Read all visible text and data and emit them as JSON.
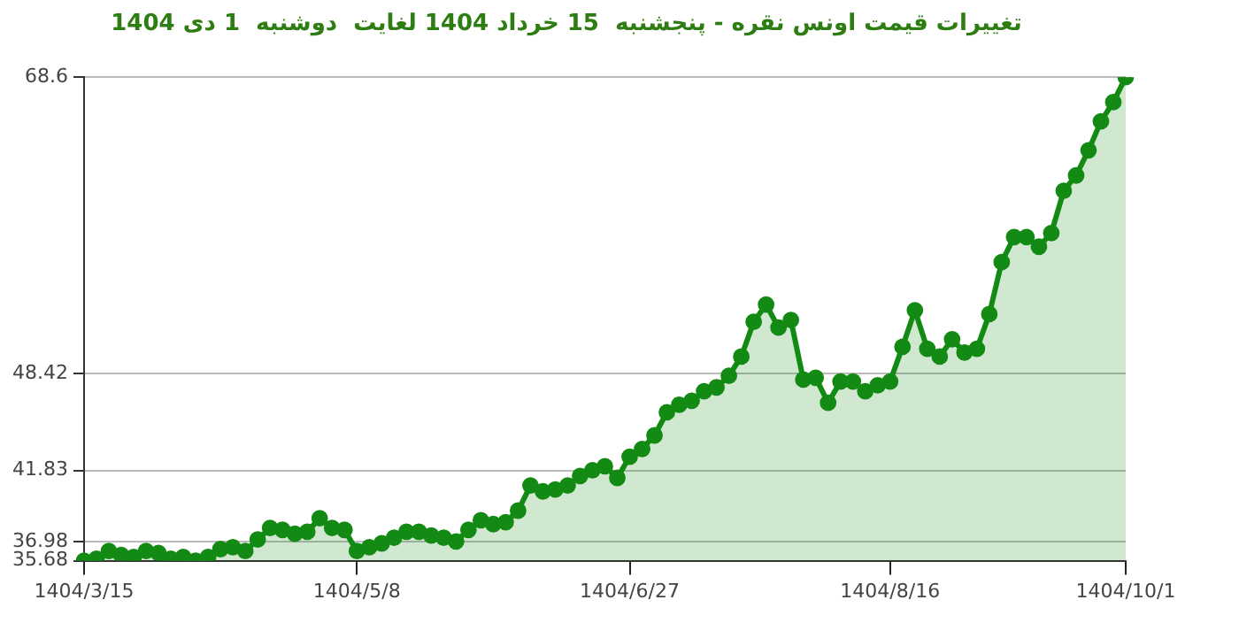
{
  "chart_data": {
    "type": "area",
    "title": "تغییرات قیمت اونس نقره - پنجشنبه  15 خرداد 1404 لغایت  دوشنبه  1 دی 1404",
    "categories": [
      "1404/3/15",
      null,
      null,
      null,
      null,
      null,
      null,
      null,
      null,
      null,
      null,
      null,
      null,
      null,
      null,
      null,
      null,
      null,
      null,
      null,
      null,
      null,
      "1404/5/8",
      null,
      null,
      null,
      null,
      null,
      null,
      null,
      null,
      null,
      null,
      null,
      null,
      null,
      null,
      null,
      null,
      null,
      null,
      null,
      null,
      null,
      "1404/6/27",
      null,
      null,
      null,
      null,
      null,
      null,
      null,
      null,
      null,
      null,
      null,
      null,
      null,
      null,
      null,
      null,
      null,
      null,
      null,
      null,
      "1404/8/16",
      null,
      null,
      null,
      null,
      null,
      null,
      null,
      null,
      null,
      null,
      null,
      null,
      null,
      null,
      null,
      null,
      null,
      null,
      "1404/10/1"
    ],
    "series": [
      {
        "color": "#138a13",
        "values": [
          35.68,
          35.81,
          36.34,
          36.07,
          35.94,
          36.34,
          36.2,
          35.81,
          35.94,
          35.68,
          35.94,
          36.47,
          36.6,
          36.34,
          37.12,
          37.91,
          37.78,
          37.52,
          37.65,
          38.57,
          37.91,
          37.78,
          36.34,
          36.6,
          36.86,
          37.25,
          37.65,
          37.65,
          37.39,
          37.25,
          36.99,
          37.78,
          38.43,
          38.17,
          38.3,
          39.09,
          40.8,
          40.4,
          40.53,
          40.8,
          41.45,
          41.84,
          42.11,
          41.32,
          42.76,
          43.29,
          44.21,
          45.78,
          46.3,
          46.57,
          47.22,
          47.48,
          48.27,
          49.58,
          51.94,
          53.12,
          51.55,
          52.07,
          48.01,
          48.14,
          46.43,
          47.88,
          47.88,
          47.22,
          47.62,
          47.88,
          50.24,
          52.73,
          50.11,
          49.58,
          50.76,
          49.85,
          50.11,
          52.47,
          56.01,
          57.72,
          57.72,
          57.06,
          57.98,
          60.86,
          61.91,
          63.62,
          65.59,
          66.9,
          68.6
        ]
      }
    ],
    "ylim": [
      35.68,
      68.6
    ],
    "yticks": [
      35.68,
      36.98,
      41.83,
      48.42,
      68.6
    ],
    "grid": "y",
    "marker": "circle",
    "line_style": "solid",
    "legend": false
  }
}
